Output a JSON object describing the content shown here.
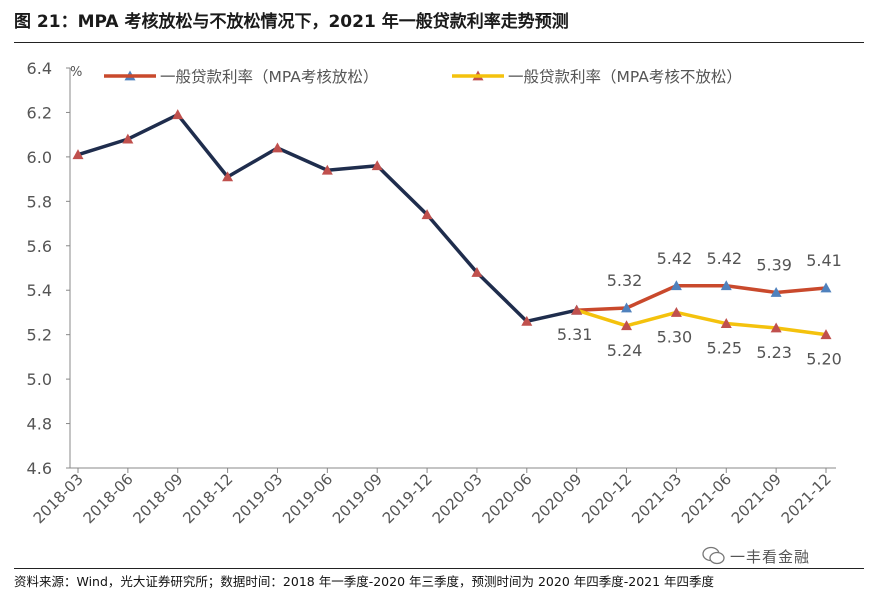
{
  "header": {
    "title": "图 21：MPA 考核放松与不放松情况下，2021 年一般贷款利率走势预测"
  },
  "footer": {
    "source": "资料来源：Wind，光大证券研究所；数据时间：2018 年一季度-2020 年三季度，预测时间为 2020 年四季度-2021 年四季度",
    "watermark": "一丰看金融"
  },
  "chart_data": {
    "type": "line",
    "title": "",
    "xlabel": "",
    "ylabel": "%",
    "ylim": [
      4.6,
      6.4
    ],
    "yticks": [
      "4.6",
      "4.8",
      "5.0",
      "5.2",
      "5.4",
      "5.6",
      "5.8",
      "6.0",
      "6.2",
      "6.4"
    ],
    "categories": [
      "2018-03",
      "2018-06",
      "2018-09",
      "2018-12",
      "2019-03",
      "2019-06",
      "2019-09",
      "2019-12",
      "2020-03",
      "2020-06",
      "2020-09",
      "2020-12",
      "2021-03",
      "2021-06",
      "2021-09",
      "2021-12"
    ],
    "grid": false,
    "legend_position": "top",
    "series": [
      {
        "name": "",
        "color": "#1f2d4d",
        "marker_color": "#c0504d",
        "values": [
          6.01,
          6.08,
          6.19,
          5.91,
          6.04,
          5.94,
          5.96,
          5.74,
          5.48,
          5.26,
          5.31,
          null,
          null,
          null,
          null,
          null
        ]
      },
      {
        "name": "一般贷款利率（MPA考核放松）",
        "color": "#c9492c",
        "marker_color": "#4f81bd",
        "values": [
          null,
          null,
          null,
          null,
          null,
          null,
          null,
          null,
          null,
          null,
          5.31,
          5.32,
          5.42,
          5.42,
          5.39,
          5.41
        ],
        "labels": [
          "",
          "",
          "",
          "",
          "",
          "",
          "",
          "",
          "",
          "",
          "",
          "5.32",
          "5.42",
          "5.42",
          "5.39",
          "5.41"
        ]
      },
      {
        "name": "一般贷款利率（MPA考核不放松）",
        "color": "#f4c20d",
        "marker_color": "#c0504d",
        "values": [
          null,
          null,
          null,
          null,
          null,
          null,
          null,
          null,
          null,
          null,
          5.31,
          5.24,
          5.3,
          5.25,
          5.23,
          5.2
        ],
        "labels": [
          "",
          "",
          "",
          "",
          "",
          "",
          "",
          "",
          "",
          "",
          "5.31",
          "5.24",
          "5.30",
          "5.25",
          "5.23",
          "5.20"
        ]
      }
    ]
  }
}
